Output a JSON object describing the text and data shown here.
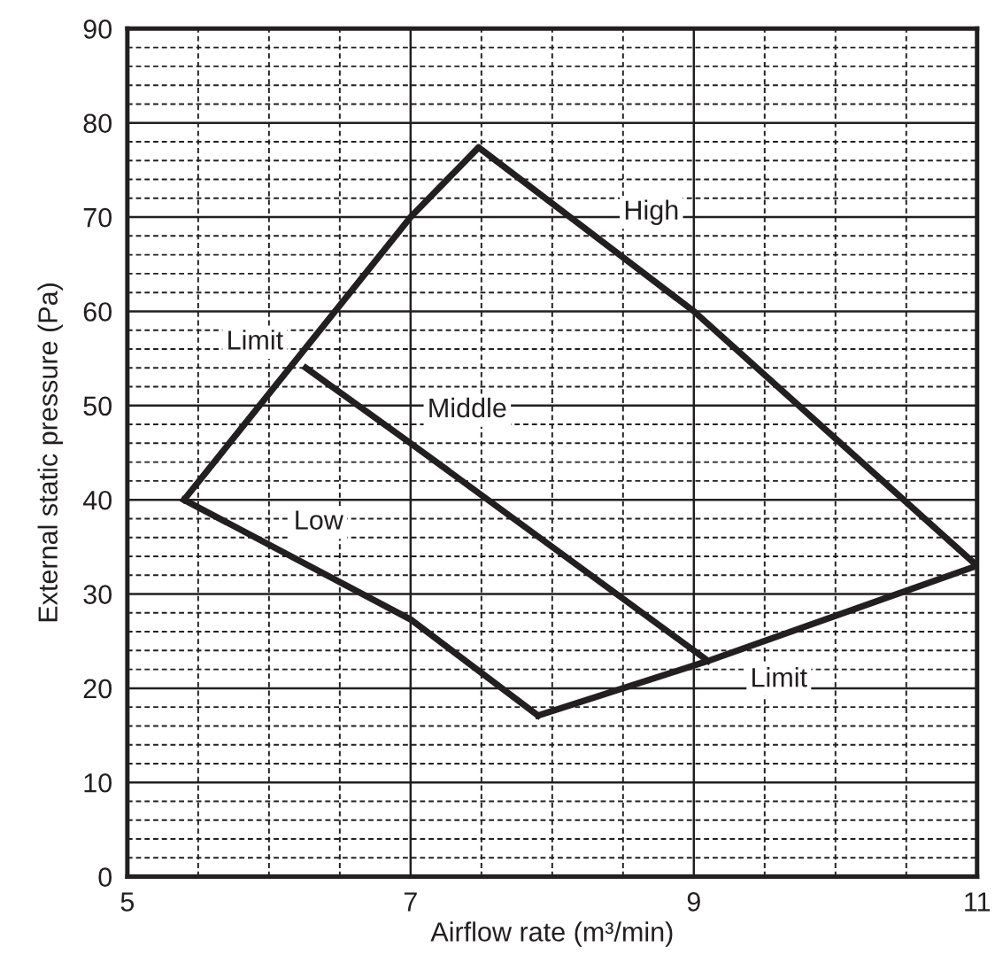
{
  "chart_data": {
    "type": "line",
    "xlabel": "Airflow rate (m³/min)",
    "ylabel": "External static pressure (Pa)",
    "xlim": [
      5,
      11
    ],
    "ylim": [
      0,
      90
    ],
    "xticks": [
      5,
      {
        "value": 5.5,
        "label": null
      },
      {
        "value": 6,
        "label": null
      },
      {
        "value": 6.5,
        "label": null
      },
      7,
      {
        "value": 7.5,
        "label": null
      },
      {
        "value": 8,
        "label": null
      },
      {
        "value": 8.5,
        "label": null
      },
      9,
      {
        "value": 9.5,
        "label": null
      },
      {
        "value": 10,
        "label": null
      },
      {
        "value": 10.5,
        "label": null
      },
      11
    ],
    "yticks": [
      0,
      {
        "value": 2,
        "label": null
      },
      {
        "value": 4,
        "label": null
      },
      {
        "value": 6,
        "label": null
      },
      {
        "value": 8,
        "label": null
      },
      10,
      {
        "value": 12,
        "label": null
      },
      {
        "value": 14,
        "label": null
      },
      {
        "value": 16,
        "label": null
      },
      {
        "value": 18,
        "label": null
      },
      20,
      {
        "value": 22,
        "label": null
      },
      {
        "value": 24,
        "label": null
      },
      {
        "value": 26,
        "label": null
      },
      {
        "value": 28,
        "label": null
      },
      30,
      {
        "value": 32,
        "label": null
      },
      {
        "value": 34,
        "label": null
      },
      {
        "value": 36,
        "label": null
      },
      {
        "value": 38,
        "label": null
      },
      40,
      {
        "value": 42,
        "label": null
      },
      {
        "value": 44,
        "label": null
      },
      {
        "value": 46,
        "label": null
      },
      {
        "value": 48,
        "label": null
      },
      50,
      {
        "value": 52,
        "label": null
      },
      {
        "value": 54,
        "label": null
      },
      {
        "value": 56,
        "label": null
      },
      {
        "value": 58,
        "label": null
      },
      60,
      {
        "value": 62,
        "label": null
      },
      {
        "value": 64,
        "label": null
      },
      {
        "value": 66,
        "label": null
      },
      {
        "value": 68,
        "label": null
      },
      70,
      {
        "value": 72,
        "label": null
      },
      {
        "value": 74,
        "label": null
      },
      {
        "value": 76,
        "label": null
      },
      {
        "value": 78,
        "label": null
      },
      80,
      {
        "value": 82,
        "label": null
      },
      {
        "value": 84,
        "label": null
      },
      {
        "value": 86,
        "label": null
      },
      {
        "value": 88,
        "label": null
      },
      90
    ],
    "grid": true,
    "marker": "none",
    "line_style": "solid",
    "series": [
      {
        "color": "#231f20",
        "x": [
          5.4,
          7,
          7.48,
          9,
          11
        ],
        "values": [
          40,
          70,
          77.4,
          60,
          33
        ]
      },
      {
        "color": "#231f20",
        "x": [
          6.26,
          7,
          9.1
        ],
        "values": [
          54,
          46,
          22.9
        ]
      },
      {
        "color": "#231f20",
        "x": [
          5.4,
          7,
          7.9
        ],
        "values": [
          40,
          27.3,
          17.1
        ]
      },
      {
        "color": "#231f20",
        "x": [
          7.9,
          9.1,
          11
        ],
        "values": [
          17.1,
          22.9,
          33
        ]
      }
    ],
    "annotations": [
      {
        "text": "High",
        "x": 8.7,
        "y": 70.5
      },
      {
        "text": "Limit",
        "x": 5.9,
        "y": 56.7
      },
      "Middle",
      {
        "text": "Low",
        "x": 6.35,
        "y": 37.6
      },
      {
        "text": "Limit",
        "x": 9.6,
        "y": 20.9
      }
    ]
  }
}
